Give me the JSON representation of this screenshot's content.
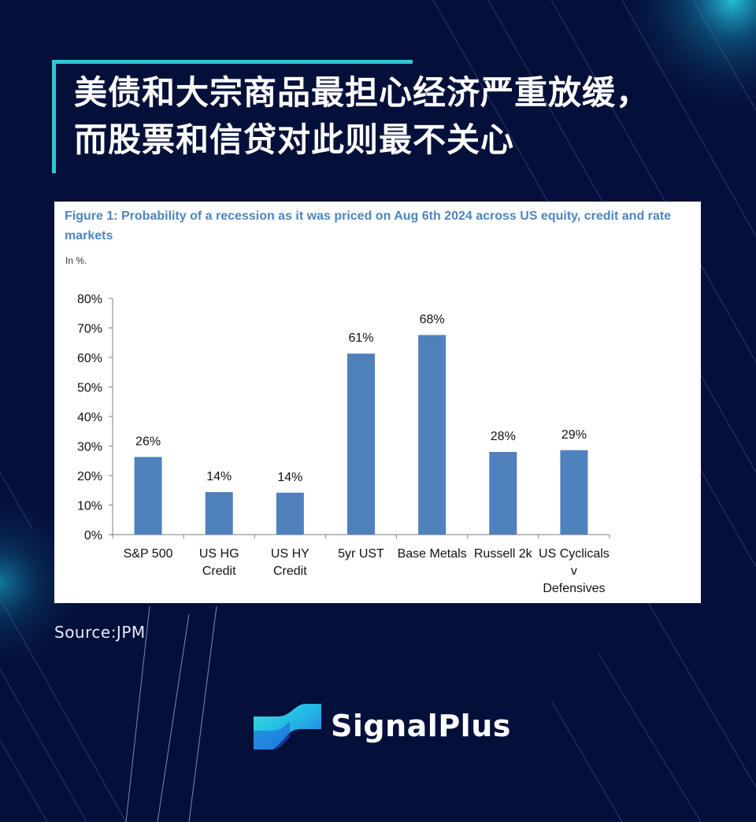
{
  "headline": {
    "line1": "美债和大宗商品最担心经济严重放缓，",
    "line2": "而股票和信贷对此则最不关心"
  },
  "figure": {
    "title": "Figure 1: Probability of a recession as it was priced on Aug 6th 2024 across US equity, credit and rate markets",
    "unit_note": "In %."
  },
  "chart_data": {
    "type": "bar",
    "title": "Figure 1: Probability of a recession as it was priced on Aug 6th 2024 across US equity, credit and rate markets",
    "ylabel": "",
    "xlabel": "",
    "ylim": [
      0,
      80
    ],
    "yticks": [
      "0%",
      "10%",
      "20%",
      "30%",
      "40%",
      "50%",
      "60%",
      "70%",
      "80%"
    ],
    "categories": [
      [
        "S&P 500"
      ],
      [
        "US HG",
        "Credit"
      ],
      [
        "US HY",
        "Credit"
      ],
      [
        "5yr UST"
      ],
      [
        "Base Metals"
      ],
      [
        "Russell 2k"
      ],
      [
        "US Cyclicals",
        "v",
        "Defensives"
      ]
    ],
    "values": [
      26.3,
      14.4,
      14.2,
      61.3,
      67.6,
      28.0,
      28.6
    ],
    "data_labels": [
      "26%",
      "14%",
      "14%",
      "61%",
      "68%",
      "28%",
      "29%"
    ],
    "bar_color": "#4f81bd",
    "grid": false,
    "legend": "none"
  },
  "source": "Source:JPM",
  "brand": {
    "name": "SignalPlus",
    "logo_icon": "signalplus-logo-icon"
  },
  "colors": {
    "background": "#05103a",
    "accent": "#2fc7d6",
    "figure_title": "#4c86c2"
  }
}
